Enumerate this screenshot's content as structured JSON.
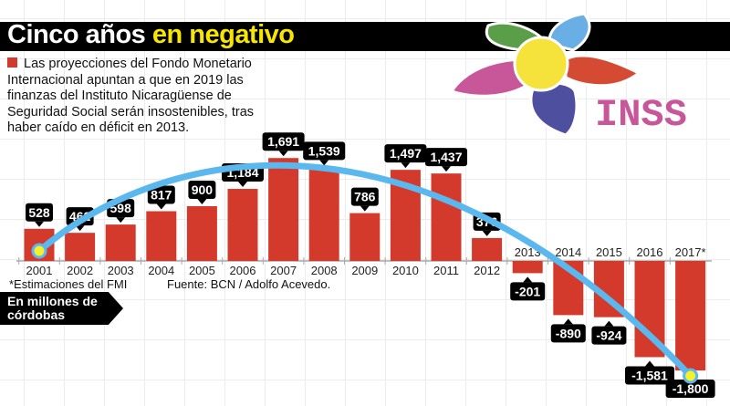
{
  "header": {
    "title_part1": "Cinco años",
    "title_part2": "en negativo"
  },
  "intro": "Las proyecciones del Fondo Monetario Internacional apuntan a que en 2019 las finanzas del Instituto Nicaragüense de Seguridad Social serán insostenibles, tras haber caído en déficit en 2013.",
  "unit_label": "En millones de córdobas",
  "footnote": "*Estimaciones del FMI",
  "source": "Fuente: BCN / Adolfo Acevedo.",
  "logo": {
    "text": "INSS",
    "petal_colors": [
      "#5a9e4a",
      "#6aaee6",
      "#d44a33",
      "#4e4f9e",
      "#c8579a"
    ],
    "center_color": "#f5e23a",
    "text_color": "#c8579a"
  },
  "colors": {
    "bar": "#d33a2c",
    "trend": "#5bb8ee",
    "label_bg": "#000000",
    "label_text": "#ffffff",
    "trend_dot": "#f5f02a"
  },
  "chart_data": {
    "type": "bar",
    "title": "Cinco años en negativo",
    "ylabel": "En millones de córdobas",
    "categories": [
      "2001",
      "2002",
      "2003",
      "2004",
      "2005",
      "2006",
      "2007",
      "2008",
      "2009",
      "2010",
      "2011",
      "2012",
      "2013",
      "2014",
      "2015",
      "2016",
      "2017*"
    ],
    "values": [
      528,
      462,
      598,
      817,
      900,
      1184,
      1691,
      1539,
      786,
      1497,
      1437,
      376,
      -201,
      -890,
      -924,
      -1581,
      -1800
    ],
    "value_labels": [
      "528",
      "462",
      "598",
      "817",
      "900",
      "1,184",
      "1,691",
      "1,539",
      "786",
      "1,497",
      "1,437",
      "376",
      "-201",
      "-890",
      "-924",
      "-1,581",
      "-1,800"
    ],
    "ylim": [
      -1800,
      1700
    ],
    "overlay": "trend curve from 2001 to 2017*",
    "grid": true
  }
}
